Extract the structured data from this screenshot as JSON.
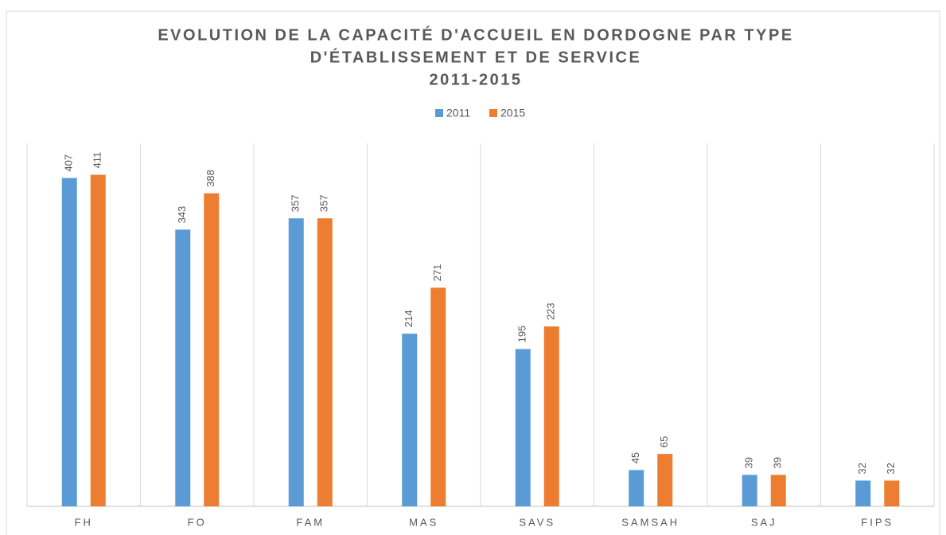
{
  "chart_data": {
    "type": "bar",
    "title": [
      "EVOLUTION DE LA CAPACITÉ D'ACCUEIL EN DORDOGNE PAR TYPE",
      "D'ÉTABLISSEMENT ET DE SERVICE",
      "2011-2015"
    ],
    "categories": [
      "FH",
      "FO",
      "FAM",
      "MAS",
      "SAVS",
      "SAMSAH",
      "SAJ",
      "FIPS"
    ],
    "series": [
      {
        "name": "2011",
        "color": "#5b9bd5",
        "values": [
          407,
          343,
          357,
          214,
          195,
          45,
          39,
          32
        ]
      },
      {
        "name": "2015",
        "color": "#ed7d31",
        "values": [
          411,
          388,
          357,
          271,
          223,
          65,
          39,
          32
        ]
      }
    ],
    "ylim": [
      0,
      450
    ],
    "legend": "top"
  }
}
